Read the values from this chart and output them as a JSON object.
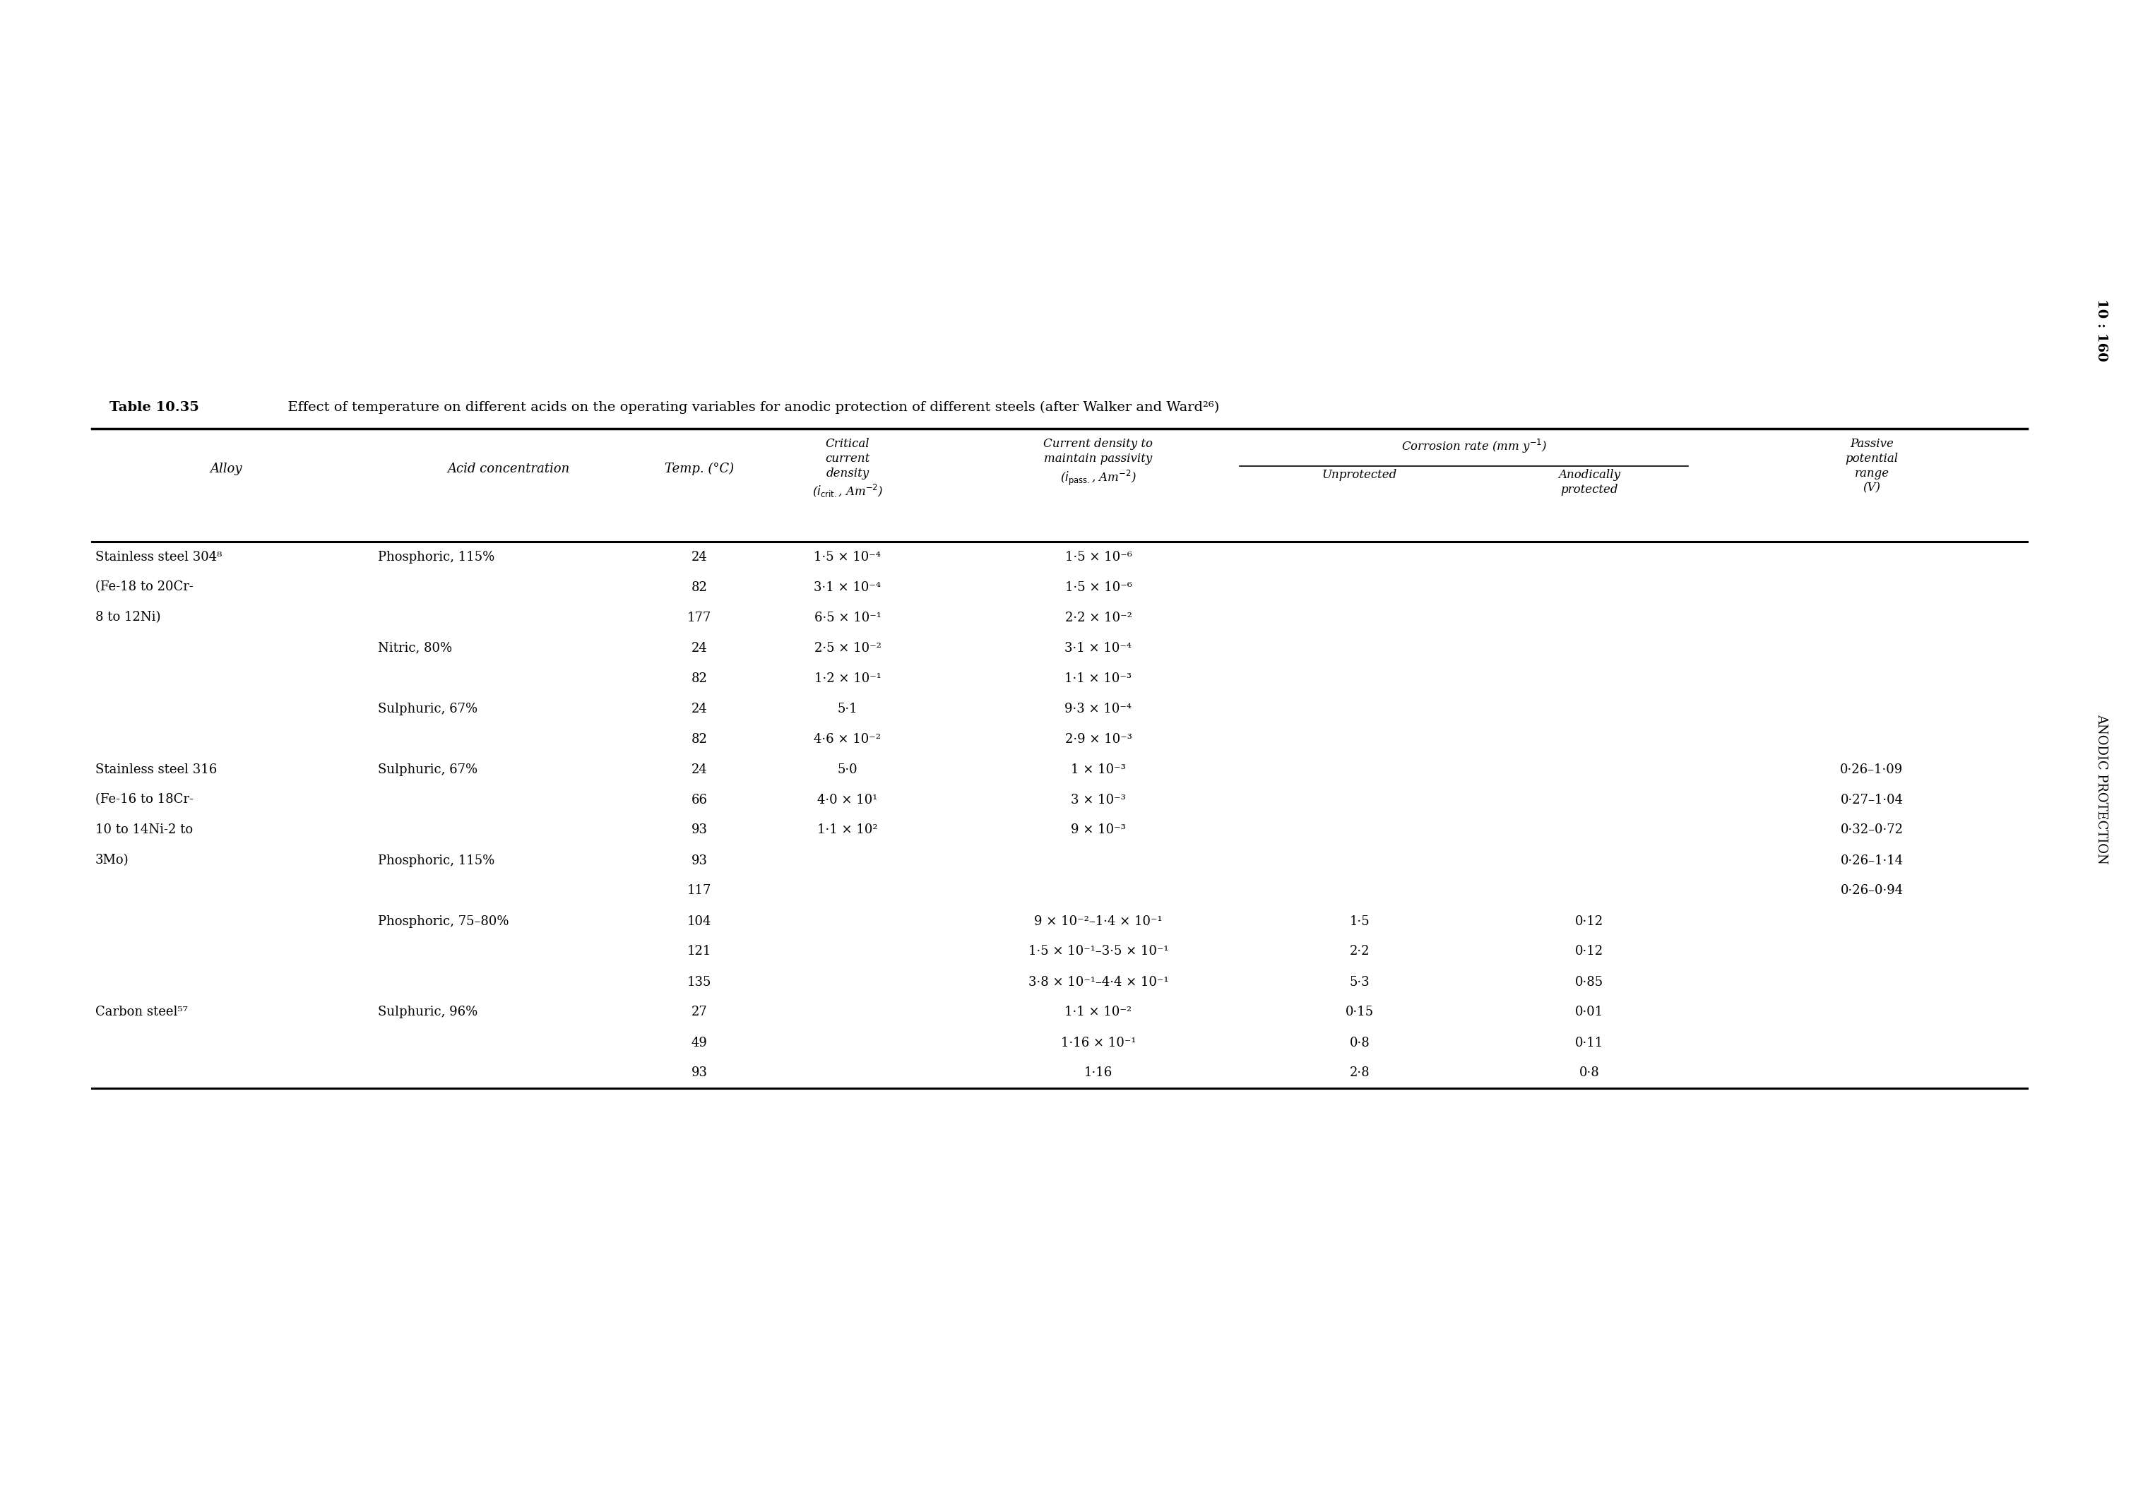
{
  "title_bold": "Table 10.35",
  "title_rest": "  Effect of temperature on different acids on the operating variables for anodic protection of different steels (after Walker and Ward²⁶)",
  "side_text": "ANODIC PROTECTION",
  "page_ref": "10 : 160",
  "corrosion_rate_header": "Corrosion rate (mm y⁻¹)",
  "rows": [
    [
      "Stainless steel 304⁸",
      "Phosphoric, 115%",
      "24",
      "1·5 × 10⁻⁴",
      "1·5 × 10⁻⁶",
      "",
      "",
      ""
    ],
    [
      "(Fe-18 to 20Cr-",
      "",
      "82",
      "3·1 × 10⁻⁴",
      "1·5 × 10⁻⁶",
      "",
      "",
      ""
    ],
    [
      "8 to 12Ni)",
      "",
      "177",
      "6·5 × 10⁻¹",
      "2·2 × 10⁻²",
      "",
      "",
      ""
    ],
    [
      "",
      "Nitric, 80%",
      "24",
      "2·5 × 10⁻²",
      "3·1 × 10⁻⁴",
      "",
      "",
      ""
    ],
    [
      "",
      "",
      "82",
      "1·2 × 10⁻¹",
      "1·1 × 10⁻³",
      "",
      "",
      ""
    ],
    [
      "",
      "Sulphuric, 67%",
      "24",
      "5·1",
      "9·3 × 10⁻⁴",
      "",
      "",
      ""
    ],
    [
      "",
      "",
      "82",
      "4·6 × 10⁻²",
      "2·9 × 10⁻³",
      "",
      "",
      ""
    ],
    [
      "Stainless steel 316",
      "Sulphuric, 67%",
      "24",
      "5·0",
      "1 × 10⁻³",
      "",
      "",
      "0·26–1·09"
    ],
    [
      "(Fe-16 to 18Cr-",
      "",
      "66",
      "4·0 × 10¹",
      "3 × 10⁻³",
      "",
      "",
      "0·27–1·04"
    ],
    [
      "10 to 14Ni-2 to",
      "",
      "93",
      "1·1 × 10²",
      "9 × 10⁻³",
      "",
      "",
      "0·32–0·72"
    ],
    [
      "3Mo)",
      "Phosphoric, 115%",
      "93",
      "",
      "",
      "",
      "",
      "0·26–1·14"
    ],
    [
      "",
      "",
      "117",
      "",
      "",
      "",
      "",
      "0·26–0·94"
    ],
    [
      "",
      "Phosphoric, 75–80%",
      "104",
      "",
      "9 × 10⁻²–1·4 × 10⁻¹",
      "1·5",
      "0·12",
      ""
    ],
    [
      "",
      "",
      "121",
      "",
      "1·5 × 10⁻¹–3·5 × 10⁻¹",
      "2·2",
      "0·12",
      ""
    ],
    [
      "",
      "",
      "135",
      "",
      "3·8 × 10⁻¹–4·4 × 10⁻¹",
      "5·3",
      "0·85",
      ""
    ],
    [
      "Carbon steel⁵⁷",
      "Sulphuric, 96%",
      "27",
      "",
      "1·1 × 10⁻²",
      "0·15",
      "0·01",
      ""
    ],
    [
      "",
      "",
      "49",
      "",
      "1·16 × 10⁻¹",
      "0·8",
      "0·11",
      ""
    ],
    [
      "",
      "",
      "93",
      "",
      "1·16",
      "2·8",
      "0·8",
      ""
    ]
  ]
}
